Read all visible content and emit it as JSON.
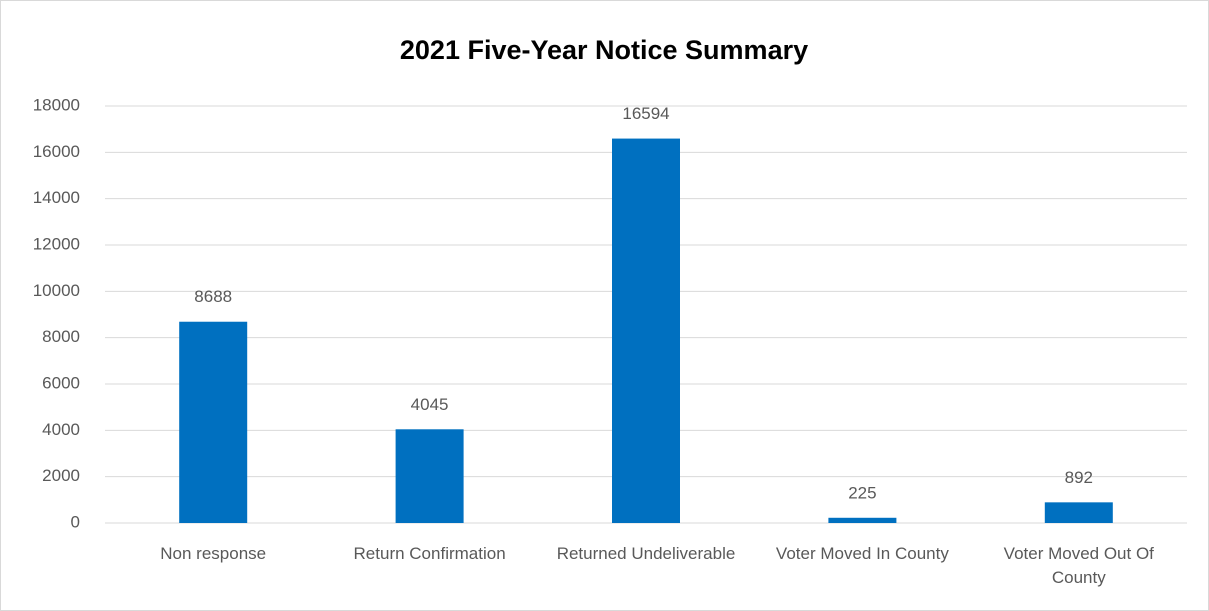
{
  "chart_data": {
    "type": "bar",
    "title": "2021 Five-Year Notice Summary",
    "categories": [
      "Non response",
      "Return Confirmation",
      "Returned Undeliverable",
      "Voter Moved In County",
      "Voter Moved Out Of County"
    ],
    "values": [
      8688,
      4045,
      16594,
      225,
      892
    ],
    "color": "#0070c0",
    "ylim": [
      0,
      18000
    ],
    "yticks": [
      0,
      2000,
      4000,
      6000,
      8000,
      10000,
      12000,
      14000,
      16000,
      18000
    ],
    "grid": true
  }
}
